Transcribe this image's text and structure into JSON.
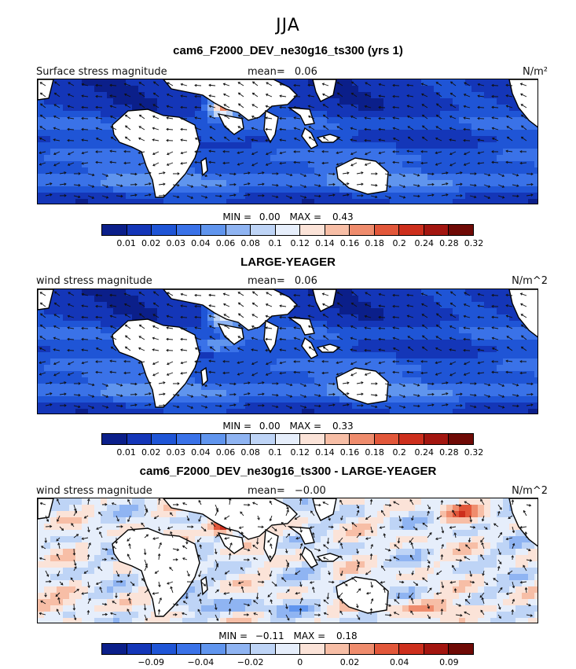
{
  "page": {
    "season": "JJA"
  },
  "palette": [
    "#0b1f8a",
    "#1436b8",
    "#1f55d6",
    "#3a72e8",
    "#6095ee",
    "#8fb4f2",
    "#bed4f6",
    "#e6eefb",
    "#fbe3d8",
    "#f7bea6",
    "#ef8c6d",
    "#e2573a",
    "#cd2f1d",
    "#a31610",
    "#6f0a06"
  ],
  "panels": [
    {
      "title": "cam6_F2000_DEV_ne30g16_ts300 (yrs 1)",
      "left_label": "Surface stress magnitude",
      "mean_label": "mean=",
      "mean_value": "0.06",
      "units": "N/m²",
      "min_label": "MIN =",
      "min_value": "0.00",
      "max_label": "MAX =",
      "max_value": "0.43",
      "tick_labels": [
        "0.01",
        "0.02",
        "0.03",
        "0.04",
        "0.06",
        "0.08",
        "0.1",
        "0.12",
        "0.14",
        "0.16",
        "0.18",
        "0.2",
        "0.24",
        "0.28",
        "0.32"
      ]
    },
    {
      "title": "LARGE-YEAGER",
      "left_label": "wind stress magnitude",
      "mean_label": "mean=",
      "mean_value": "0.06",
      "units": "N/m^2",
      "min_label": "MIN =",
      "min_value": "0.00",
      "max_label": "MAX =",
      "max_value": "0.33",
      "tick_labels": [
        "0.01",
        "0.02",
        "0.03",
        "0.04",
        "0.06",
        "0.08",
        "0.1",
        "0.12",
        "0.14",
        "0.16",
        "0.18",
        "0.2",
        "0.24",
        "0.28",
        "0.32"
      ]
    },
    {
      "title": "cam6_F2000_DEV_ne30g16_ts300 - LARGE-YEAGER",
      "left_label": "wind stress magnitude",
      "mean_label": "mean=",
      "mean_value": "−0.00",
      "units": "N/m^2",
      "min_label": "MIN =",
      "min_value": "−0.11",
      "max_label": "MAX =",
      "max_value": "0.18",
      "tick_labels": [
        "",
        "−0.09",
        "",
        "−0.04",
        "",
        "−0.02",
        "",
        "0",
        "",
        "0.02",
        "",
        "0.04",
        "",
        "0.09",
        ""
      ]
    }
  ],
  "chart_data": [
    {
      "type": "heatmap",
      "title": "cam6_F2000_DEV_ne30g16_ts300 (yrs 1)",
      "variable": "Surface stress magnitude",
      "units": "N/m²",
      "mean": 0.06,
      "min": 0.0,
      "max": 0.43,
      "colorbar_levels": [
        0.01,
        0.02,
        0.03,
        0.04,
        0.06,
        0.08,
        0.1,
        0.12,
        0.14,
        0.16,
        0.18,
        0.2,
        0.24,
        0.28,
        0.32
      ],
      "overlay": "wind stress vectors"
    },
    {
      "type": "heatmap",
      "title": "LARGE-YEAGER",
      "variable": "wind stress magnitude",
      "units": "N/m^2",
      "mean": 0.06,
      "min": 0.0,
      "max": 0.33,
      "colorbar_levels": [
        0.01,
        0.02,
        0.03,
        0.04,
        0.06,
        0.08,
        0.1,
        0.12,
        0.14,
        0.16,
        0.18,
        0.2,
        0.24,
        0.28,
        0.32
      ],
      "overlay": "wind stress vectors"
    },
    {
      "type": "heatmap",
      "title": "cam6_F2000_DEV_ne30g16_ts300 - LARGE-YEAGER",
      "variable": "wind stress magnitude",
      "units": "N/m^2",
      "mean": -0.0,
      "min": -0.11,
      "max": 0.18,
      "colorbar_levels": [
        -0.09,
        -0.04,
        -0.02,
        0,
        0.02,
        0.04,
        0.09
      ],
      "overlay": "difference wind stress vectors"
    }
  ]
}
